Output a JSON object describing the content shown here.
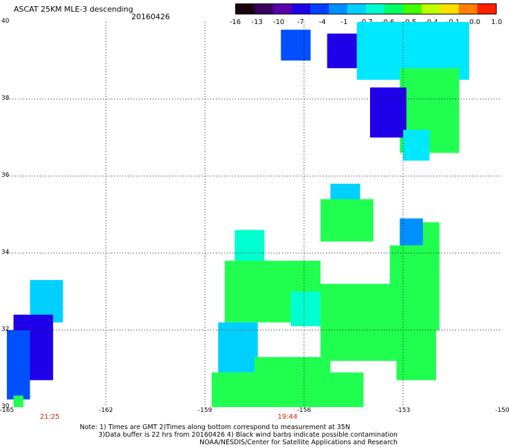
{
  "header": {
    "title": "ASCAT 25KM MLE-3 descending",
    "date": "20160426"
  },
  "colorbar": {
    "labels": [
      "-16",
      "-13",
      "-10",
      "-7",
      "-4",
      "-1",
      "-0.7",
      "-0.6",
      "-0.5",
      "-0.4",
      "-0.1",
      "0.0",
      "1.0"
    ],
    "colors": [
      "#1a0010",
      "#3a0060",
      "#5a00a8",
      "#2000e8",
      "#0040ff",
      "#0090ff",
      "#00d0ff",
      "#00ffd0",
      "#00ff60",
      "#40ff00",
      "#c0ff00",
      "#ffe000",
      "#ff8000",
      "#ff2000"
    ]
  },
  "axes": {
    "y_ticks": [
      "40",
      "38",
      "36",
      "34",
      "32",
      "30"
    ],
    "x_ticks": [
      "-165",
      "-162",
      "-159",
      "-156",
      "-153",
      "-150"
    ],
    "xlim": [
      -165,
      -150
    ],
    "ylim": [
      30,
      40
    ],
    "grid": true
  },
  "times": [
    {
      "label": "21:25",
      "lon": -163.7
    },
    {
      "label": "19:44",
      "lon": -156.5
    }
  ],
  "notes": [
    "Note: 1) Times are GMT 2)Times along bottom correspond to measurement at 35N",
    "3)Data buffer is 22 hrs from 20160426 4) Black wind barbs indicate possible contamination",
    "NOAA/NESDIS/Center for Satellite Applications and Research"
  ],
  "swaths": [
    {
      "color": "#0050ff",
      "lon": [
        -156.7,
        -155.8
      ],
      "lat": [
        39.0,
        39.8
      ]
    },
    {
      "color": "#2000e8",
      "lon": [
        -155.3,
        -154.4
      ],
      "lat": [
        38.8,
        39.7
      ]
    },
    {
      "color": "#00e8ff",
      "lon": [
        -154.4,
        -151.0
      ],
      "lat": [
        38.5,
        40.0
      ]
    },
    {
      "color": "#20ff50",
      "lon": [
        -153.1,
        -151.3
      ],
      "lat": [
        36.6,
        38.8
      ]
    },
    {
      "color": "#2000e8",
      "lon": [
        -154.0,
        -152.9
      ],
      "lat": [
        37.0,
        38.3
      ]
    },
    {
      "color": "#00e8ff",
      "lon": [
        -153.0,
        -152.2
      ],
      "lat": [
        36.4,
        37.2
      ]
    },
    {
      "color": "#00d0ff",
      "lon": [
        -155.2,
        -154.3
      ],
      "lat": [
        35.2,
        35.8
      ]
    },
    {
      "color": "#20ff50",
      "lon": [
        -155.5,
        -153.9
      ],
      "lat": [
        34.3,
        35.4
      ]
    },
    {
      "color": "#20ff50",
      "lon": [
        -153.1,
        -151.9
      ],
      "lat": [
        33.6,
        34.8
      ]
    },
    {
      "color": "#0090ff",
      "lon": [
        -153.1,
        -152.4
      ],
      "lat": [
        34.2,
        34.9
      ]
    },
    {
      "color": "#00ffd0",
      "lon": [
        -158.1,
        -157.2
      ],
      "lat": [
        33.2,
        34.6
      ]
    },
    {
      "color": "#20ff50",
      "lon": [
        -158.4,
        -155.5
      ],
      "lat": [
        32.2,
        33.8
      ]
    },
    {
      "color": "#00ffd0",
      "lon": [
        -156.4,
        -155.0
      ],
      "lat": [
        32.1,
        33.0
      ]
    },
    {
      "color": "#20ff50",
      "lon": [
        -155.5,
        -152.4
      ],
      "lat": [
        31.2,
        33.2
      ]
    },
    {
      "color": "#20ff50",
      "lon": [
        -153.4,
        -151.9
      ],
      "lat": [
        32.0,
        34.2
      ]
    },
    {
      "color": "#20ff50",
      "lon": [
        -153.2,
        -152.0
      ],
      "lat": [
        30.7,
        32.3
      ]
    },
    {
      "color": "#00d0ff",
      "lon": [
        -158.6,
        -157.4
      ],
      "lat": [
        30.9,
        32.2
      ]
    },
    {
      "color": "#20ff50",
      "lon": [
        -157.5,
        -155.2
      ],
      "lat": [
        30.5,
        31.3
      ]
    },
    {
      "color": "#20ff50",
      "lon": [
        -158.8,
        -154.2
      ],
      "lat": [
        30.0,
        30.9
      ]
    },
    {
      "color": "#00d0ff",
      "lon": [
        -164.3,
        -163.3
      ],
      "lat": [
        32.2,
        33.3
      ]
    },
    {
      "color": "#2000e8",
      "lon": [
        -164.8,
        -163.6
      ],
      "lat": [
        30.7,
        32.4
      ]
    },
    {
      "color": "#0050ff",
      "lon": [
        -165.0,
        -164.3
      ],
      "lat": [
        30.2,
        32.0
      ]
    },
    {
      "color": "#20ff50",
      "lon": [
        -164.8,
        -164.5
      ],
      "lat": [
        30.0,
        30.3
      ]
    }
  ]
}
